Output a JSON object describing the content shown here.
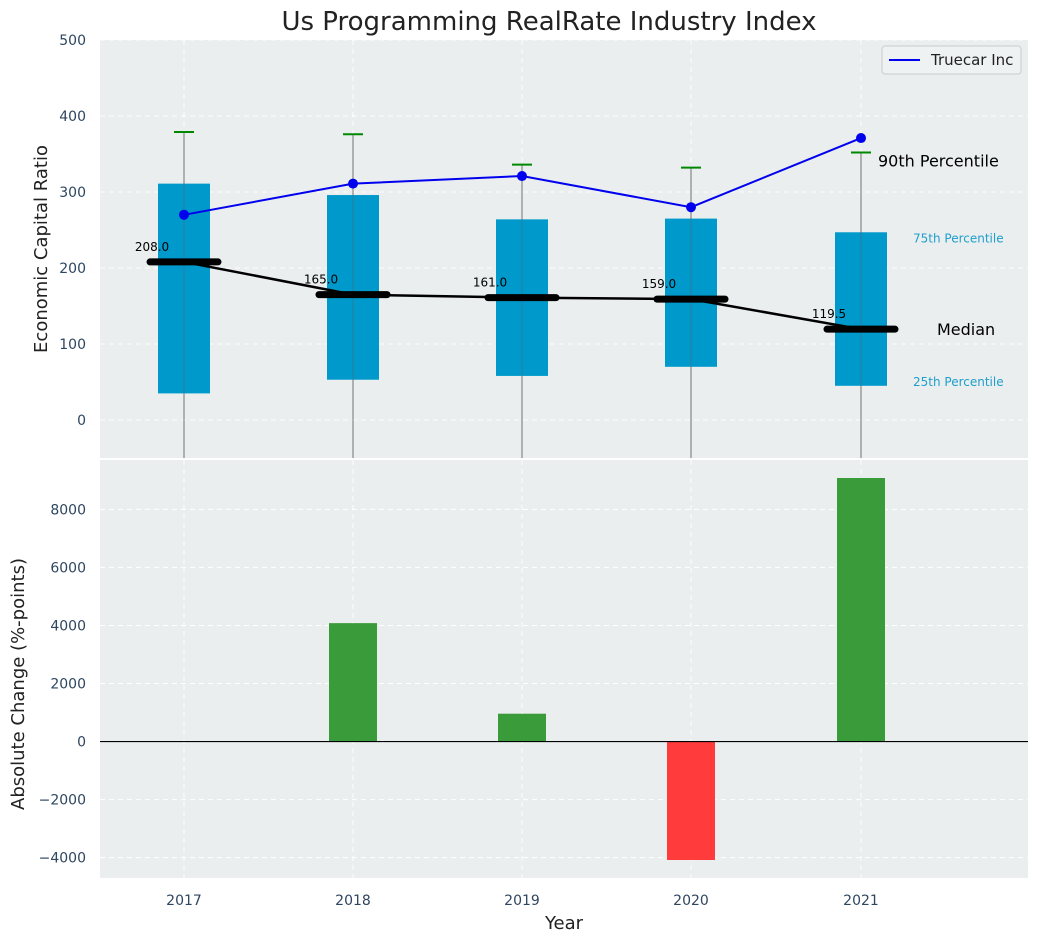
{
  "chart_data": [
    {
      "type": "box",
      "title": "Us Programming RealRate Industry Index",
      "ylabel": "Economic Capital Ratio",
      "ylim": [
        -50,
        500
      ],
      "yticks": [
        0,
        100,
        200,
        300,
        400,
        500
      ],
      "categories": [
        "2017",
        "2018",
        "2019",
        "2020",
        "2021"
      ],
      "grid": true,
      "legend_position": "top-right",
      "p25": [
        35,
        53,
        58,
        70,
        45
      ],
      "p75": [
        311,
        296,
        264,
        265,
        247
      ],
      "median": [
        208.0,
        165.0,
        161.0,
        159.0,
        119.5
      ],
      "median_labels": [
        "208.0",
        "165.0",
        "161.0",
        "159.0",
        "119.5"
      ],
      "whisker_high": [
        379,
        376,
        336,
        332,
        352
      ],
      "series": [
        {
          "name": "Truecar Inc",
          "values": [
            270,
            311,
            321,
            280,
            371
          ],
          "color": "#0000ee"
        }
      ],
      "annotations": {
        "p90": "90th Percentile",
        "p75": "75th Percentile",
        "median": "Median",
        "p25": "25th Percentile"
      },
      "colors": {
        "box": "#0099cc",
        "whisker_cap": "#008800",
        "median": "#000000"
      }
    },
    {
      "type": "bar",
      "ylabel": "Absolute Change (%-points)",
      "xlabel": "Year",
      "categories": [
        "2017",
        "2018",
        "2019",
        "2020",
        "2021"
      ],
      "values": [
        0,
        4080,
        960,
        -4080,
        9080
      ],
      "ylim": [
        -4700,
        9700
      ],
      "yticks": [
        -4000,
        -2000,
        0,
        2000,
        4000,
        6000,
        8000
      ],
      "ytick_labels": [
        "−4000",
        "−2000",
        "0",
        "2000",
        "4000",
        "6000",
        "8000"
      ],
      "grid": true,
      "colors": {
        "positive": "#3a9b3a",
        "negative": "#ff3b3b"
      }
    }
  ]
}
